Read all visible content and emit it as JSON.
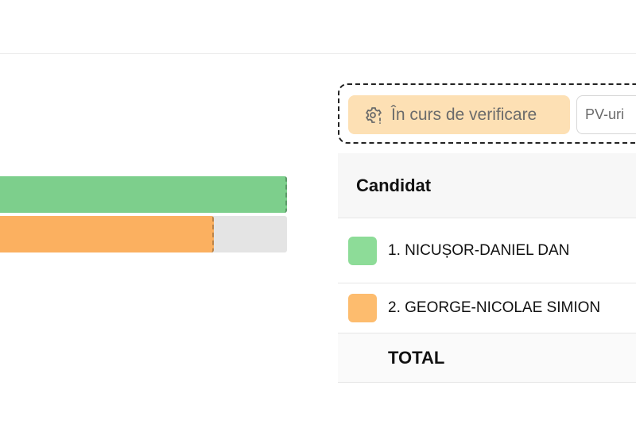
{
  "chart_data": {
    "type": "bar",
    "orientation": "horizontal",
    "series": [
      {
        "candidate_index": 1,
        "color": "#7dcf8c",
        "fill_fraction": 1.0
      },
      {
        "candidate_index": 2,
        "color": "#fbb060",
        "fill_fraction": 0.745
      }
    ],
    "track_color": "#e4e4e4"
  },
  "toolbar": {
    "status_label": "În curs de verificare",
    "status_icon": "gear-alert-icon",
    "status_color": "#fde0b4",
    "pv_label": "PV-uri"
  },
  "table": {
    "header": "Candidat",
    "rows": [
      {
        "label": "1. NICUȘOR-DANIEL DAN",
        "color": "#8ddc98"
      },
      {
        "label": "2. GEORGE-NICOLAE SIMION",
        "color": "#fdbc6e"
      }
    ],
    "total_label": "TOTAL"
  }
}
